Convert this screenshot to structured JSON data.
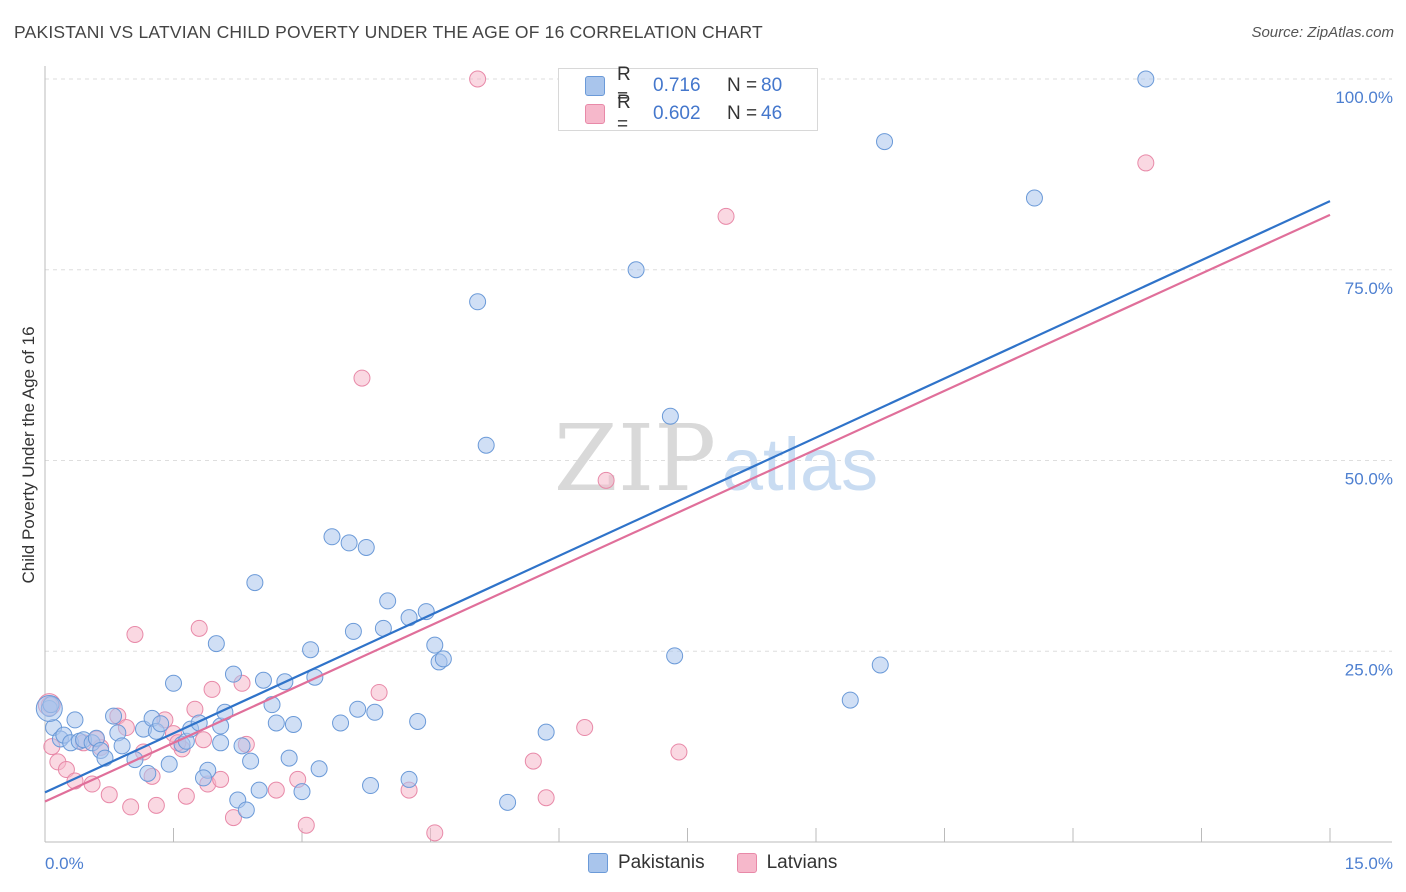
{
  "title": "PAKISTANI VS LATVIAN CHILD POVERTY UNDER THE AGE OF 16 CORRELATION CHART",
  "source": "Source: ZipAtlas.com",
  "watermark": {
    "zip": "ZIP",
    "atlas": "atlas"
  },
  "legend": {
    "r_label": "R =",
    "n_label": "N =",
    "rows": [
      {
        "r": "0.716",
        "n": "80"
      },
      {
        "r": "0.602",
        "n": "46"
      }
    ],
    "bottom": [
      "Pakistanis",
      "Latvians"
    ]
  },
  "colors": {
    "pakistani_fill": "#a9c5ec",
    "pakistani_stroke": "#6b9ad8",
    "pakistani_line": "#2f73c9",
    "latvian_fill": "#f6b8cb",
    "latvian_stroke": "#e889a8",
    "latvian_line": "#e06f9a",
    "tick_label": "#4d7fd0"
  },
  "chart_data": {
    "type": "scatter",
    "xlabel": "",
    "ylabel": "Child Poverty Under the Age of 16",
    "xlim": [
      0,
      15
    ],
    "ylim": [
      0,
      100
    ],
    "x_tick_labels": [
      "0.0%",
      "15.0%"
    ],
    "y_tick_labels": [
      "25.0%",
      "50.0%",
      "75.0%",
      "100.0%"
    ],
    "y_ticks": [
      25,
      50,
      75,
      100
    ],
    "grid": true,
    "series": [
      {
        "name": "Pakistanis",
        "r": 0.716,
        "n": 80,
        "trend": [
          [
            0,
            6.5
          ],
          [
            15,
            84
          ]
        ],
        "points": [
          [
            0.05,
            17.5
          ],
          [
            0.07,
            18.0
          ],
          [
            0.1,
            15.0
          ],
          [
            0.18,
            13.5
          ],
          [
            0.22,
            14.0
          ],
          [
            0.35,
            16.0
          ],
          [
            0.3,
            13.0
          ],
          [
            0.4,
            13.2
          ],
          [
            0.45,
            13.4
          ],
          [
            0.55,
            13.0
          ],
          [
            0.6,
            13.6
          ],
          [
            0.65,
            12.0
          ],
          [
            0.7,
            11.0
          ],
          [
            0.8,
            16.5
          ],
          [
            0.85,
            14.3
          ],
          [
            0.9,
            12.6
          ],
          [
            1.05,
            10.8
          ],
          [
            1.15,
            14.8
          ],
          [
            1.25,
            16.2
          ],
          [
            1.3,
            14.5
          ],
          [
            1.35,
            15.5
          ],
          [
            1.45,
            10.2
          ],
          [
            1.5,
            20.8
          ],
          [
            1.6,
            12.8
          ],
          [
            1.65,
            13.2
          ],
          [
            1.7,
            14.8
          ],
          [
            1.8,
            15.6
          ],
          [
            1.9,
            9.4
          ],
          [
            1.85,
            8.4
          ],
          [
            2.0,
            26.0
          ],
          [
            2.05,
            15.2
          ],
          [
            2.1,
            17.0
          ],
          [
            2.2,
            22.0
          ],
          [
            2.25,
            5.5
          ],
          [
            2.3,
            12.6
          ],
          [
            2.35,
            4.2
          ],
          [
            2.4,
            10.6
          ],
          [
            2.45,
            34.0
          ],
          [
            2.5,
            6.8
          ],
          [
            2.55,
            21.2
          ],
          [
            2.65,
            18.0
          ],
          [
            2.7,
            15.6
          ],
          [
            2.8,
            21.0
          ],
          [
            2.85,
            11.0
          ],
          [
            2.9,
            15.4
          ],
          [
            3.0,
            6.6
          ],
          [
            3.1,
            25.2
          ],
          [
            3.15,
            21.6
          ],
          [
            3.2,
            9.6
          ],
          [
            3.35,
            40.0
          ],
          [
            3.45,
            15.6
          ],
          [
            3.55,
            39.2
          ],
          [
            3.6,
            27.6
          ],
          [
            3.65,
            17.4
          ],
          [
            3.75,
            38.6
          ],
          [
            3.8,
            7.4
          ],
          [
            3.85,
            17.0
          ],
          [
            3.95,
            28.0
          ],
          [
            4.0,
            31.6
          ],
          [
            4.25,
            29.4
          ],
          [
            4.25,
            8.2
          ],
          [
            4.35,
            15.8
          ],
          [
            4.45,
            30.2
          ],
          [
            4.55,
            25.8
          ],
          [
            4.6,
            23.6
          ],
          [
            4.65,
            24.0
          ],
          [
            5.05,
            70.8
          ],
          [
            5.15,
            52.0
          ],
          [
            5.4,
            5.2
          ],
          [
            5.85,
            14.4
          ],
          [
            6.9,
            75.0
          ],
          [
            7.3,
            55.8
          ],
          [
            7.35,
            24.4
          ],
          [
            9.4,
            18.6
          ],
          [
            9.75,
            23.2
          ],
          [
            9.8,
            91.8
          ],
          [
            11.55,
            84.4
          ],
          [
            12.85,
            100.0
          ],
          [
            1.2,
            9.0
          ],
          [
            2.05,
            13.0
          ]
        ]
      },
      {
        "name": "Latvians",
        "r": 0.602,
        "n": 46,
        "trend": [
          [
            0,
            5.3
          ],
          [
            15,
            82.2
          ]
        ],
        "points": [
          [
            0.05,
            18.0
          ],
          [
            0.08,
            12.5
          ],
          [
            0.15,
            10.5
          ],
          [
            0.25,
            9.5
          ],
          [
            0.35,
            8.0
          ],
          [
            0.45,
            13.0
          ],
          [
            0.55,
            7.6
          ],
          [
            0.65,
            12.4
          ],
          [
            0.75,
            6.2
          ],
          [
            0.85,
            16.5
          ],
          [
            0.95,
            15.0
          ],
          [
            1.0,
            4.6
          ],
          [
            1.05,
            27.2
          ],
          [
            1.15,
            11.8
          ],
          [
            1.25,
            8.6
          ],
          [
            1.3,
            4.8
          ],
          [
            1.4,
            16.0
          ],
          [
            1.5,
            14.2
          ],
          [
            1.6,
            12.2
          ],
          [
            1.65,
            6.0
          ],
          [
            1.75,
            17.4
          ],
          [
            1.8,
            28.0
          ],
          [
            1.85,
            13.4
          ],
          [
            1.95,
            20.0
          ],
          [
            1.9,
            7.6
          ],
          [
            2.05,
            8.2
          ],
          [
            2.2,
            3.2
          ],
          [
            2.3,
            20.8
          ],
          [
            2.35,
            12.8
          ],
          [
            2.7,
            6.8
          ],
          [
            2.95,
            8.2
          ],
          [
            3.05,
            2.2
          ],
          [
            3.7,
            60.8
          ],
          [
            3.9,
            19.6
          ],
          [
            4.25,
            6.8
          ],
          [
            4.55,
            1.2
          ],
          [
            5.05,
            100.0
          ],
          [
            5.7,
            10.6
          ],
          [
            5.85,
            5.8
          ],
          [
            6.3,
            15.0
          ],
          [
            6.55,
            47.4
          ],
          [
            7.4,
            11.8
          ],
          [
            7.95,
            82.0
          ],
          [
            12.85,
            89.0
          ],
          [
            0.6,
            13.5
          ],
          [
            1.55,
            13.0
          ]
        ]
      }
    ]
  }
}
